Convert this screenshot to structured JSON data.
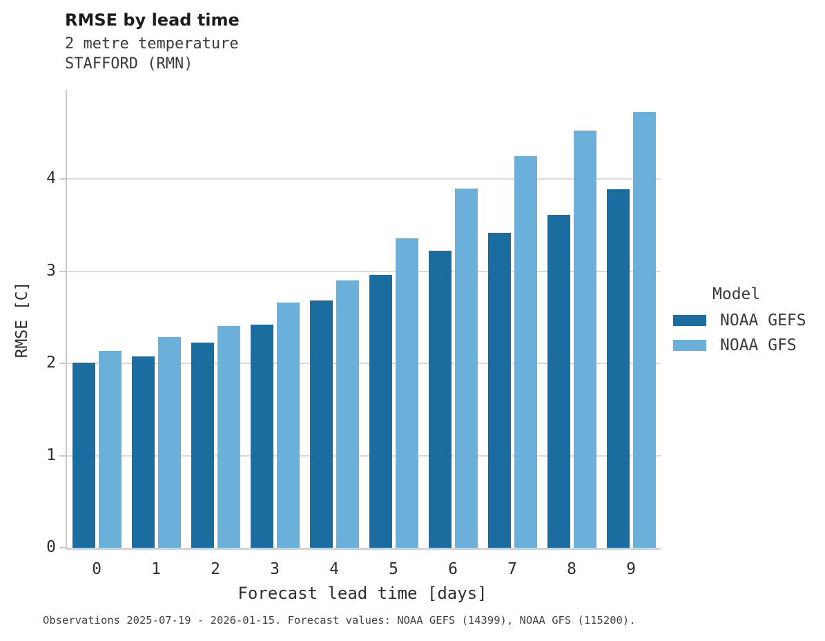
{
  "header": {
    "title": "RMSE by lead time",
    "subtitle_variable": "2 metre temperature",
    "subtitle_station": "STAFFORD (RMN)"
  },
  "footer": {
    "note": "Observations 2025-07-19 - 2026-01-15. Forecast values: NOAA GEFS (14399), NOAA GFS (115200)."
  },
  "chart_data": {
    "type": "bar",
    "title": "RMSE by lead time",
    "subtitle": [
      "2 metre temperature",
      "STAFFORD (RMN)"
    ],
    "xlabel": "Forecast lead time [days]",
    "ylabel": "RMSE [C]",
    "categories": [
      "0",
      "1",
      "2",
      "3",
      "4",
      "5",
      "6",
      "7",
      "8",
      "9"
    ],
    "series": [
      {
        "name": "NOAA GEFS",
        "color": "#1a6d9e",
        "values": [
          2.01,
          2.08,
          2.23,
          2.42,
          2.68,
          2.96,
          3.22,
          3.42,
          3.61,
          3.89
        ]
      },
      {
        "name": "NOAA GFS",
        "color": "#6ab0da",
        "values": [
          2.14,
          2.29,
          2.41,
          2.66,
          2.9,
          3.36,
          3.9,
          4.25,
          4.53,
          4.73
        ]
      }
    ],
    "ylim": [
      0,
      4.97
    ],
    "yticks": [
      0,
      1,
      2,
      3,
      4
    ],
    "grid": "horizontal",
    "legend_title": "Model",
    "legend_position": "right"
  }
}
